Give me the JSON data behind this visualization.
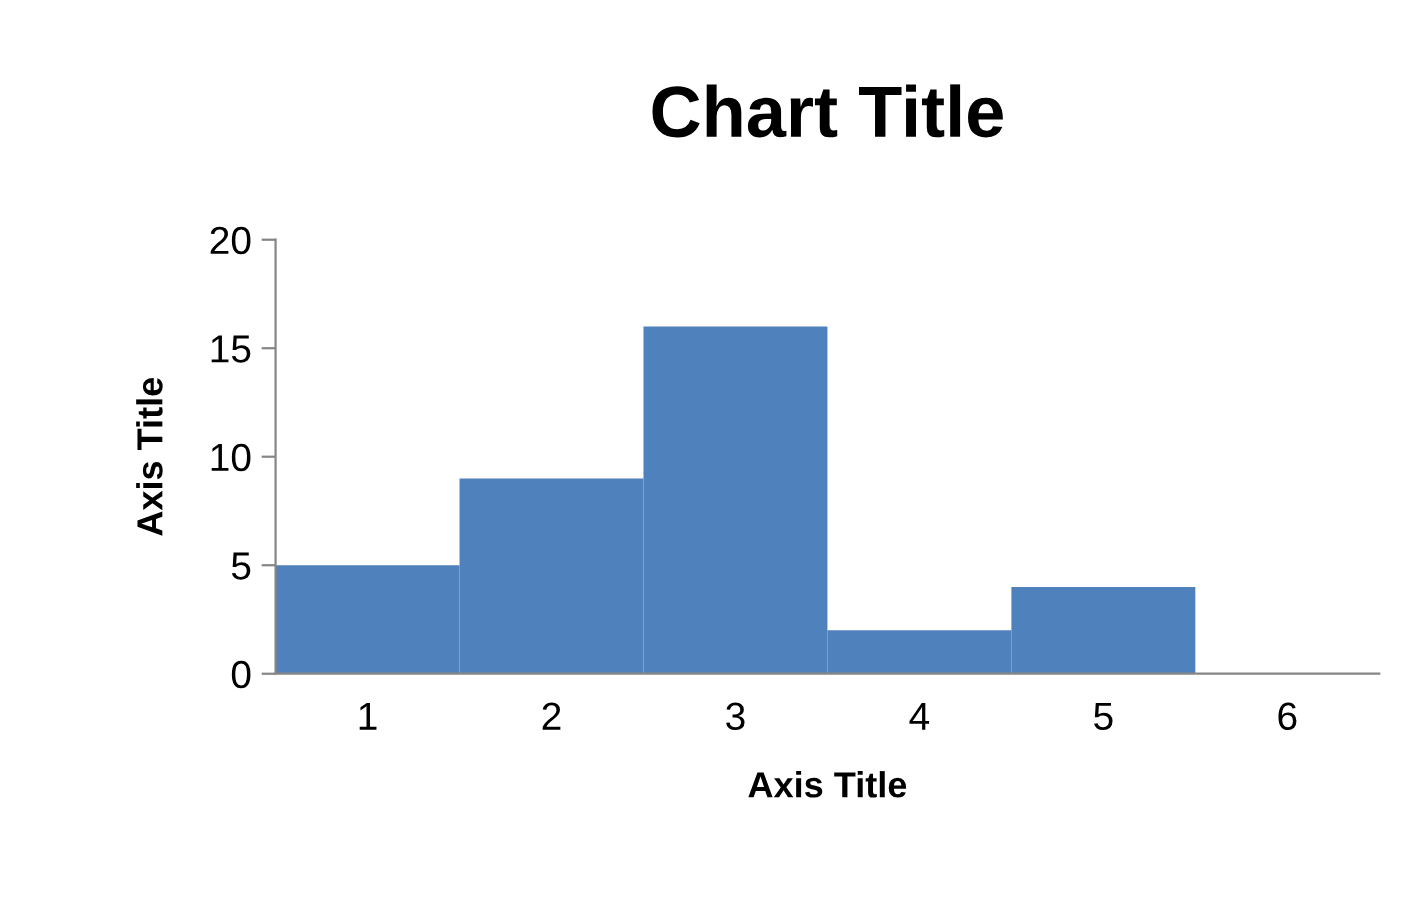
{
  "chart_data": {
    "type": "bar",
    "title": "Chart Title",
    "xlabel": "Axis Title",
    "ylabel": "Axis Title",
    "categories": [
      "1",
      "2",
      "3",
      "4",
      "5",
      "6"
    ],
    "values": [
      5,
      9,
      16,
      2,
      4,
      0
    ],
    "color": "#4f81bd",
    "ylim": [
      0,
      20
    ],
    "yticks": [
      0,
      5,
      10,
      15,
      20
    ],
    "grid": false,
    "legend": false
  }
}
